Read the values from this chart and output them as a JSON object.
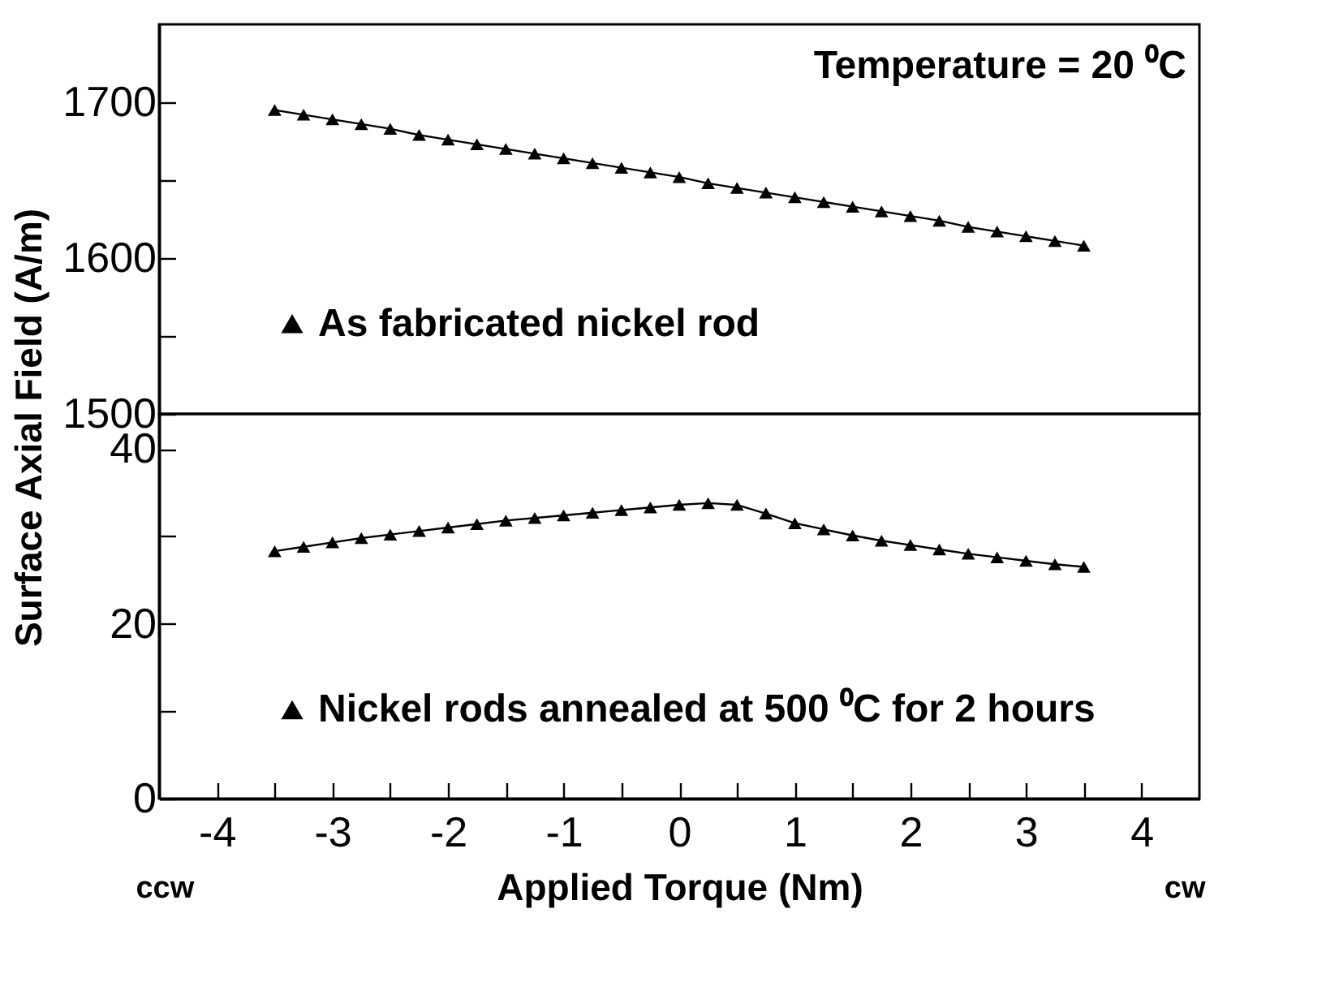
{
  "chart_data": [
    {
      "type": "line",
      "ylabel": "Surface Axial Field (A/m)",
      "annotations": [
        "Temperature = 20 ⁰C"
      ],
      "x": [
        -3.5,
        -3.25,
        -3,
        -2.75,
        -2.5,
        -2.25,
        -2,
        -1.75,
        -1.5,
        -1.25,
        -1,
        -0.75,
        -0.5,
        -0.25,
        0,
        0.25,
        0.5,
        0.75,
        1,
        1.25,
        1.5,
        1.75,
        2,
        2.25,
        2.5,
        2.75,
        3,
        3.25,
        3.5
      ],
      "series": [
        {
          "name": "As fabricated nickel rod",
          "color": "#000000",
          "values": [
            1695,
            1692,
            1689,
            1686,
            1683,
            1679,
            1676,
            1673,
            1670,
            1667,
            1664,
            1661,
            1658,
            1655,
            1652,
            1648,
            1645,
            1642,
            1639,
            1636,
            1633,
            1630,
            1627,
            1624,
            1620,
            1617,
            1614,
            1611,
            1608
          ]
        }
      ],
      "xlim": [
        -4.5,
        4.5
      ],
      "ylim": [
        1500,
        1750
      ],
      "yticks": [
        1500,
        {
          "value": 1550,
          "label": null
        },
        1600,
        {
          "value": 1650,
          "label": null
        },
        1700
      ],
      "tick_labels": "y",
      "marker": "triangle",
      "legend": "left",
      "grid": false
    },
    {
      "type": "line",
      "xlabel": "Applied  Torque (Nm)",
      "annotations": [
        "ccw",
        "cw"
      ],
      "x": [
        -3.5,
        -3.25,
        -3,
        -2.75,
        -2.5,
        -2.25,
        -2,
        -1.75,
        -1.5,
        -1.25,
        -1,
        -0.75,
        -0.5,
        -0.25,
        0,
        0.25,
        0.5,
        0.75,
        1,
        1.25,
        1.5,
        1.75,
        2,
        2.25,
        2.5,
        2.75,
        3,
        3.25,
        3.5
      ],
      "series": [
        {
          "name": "Nickel rods annealed at 500 ⁰C for 2 hours",
          "color": "#000000",
          "values": [
            28.3,
            28.8,
            29.3,
            29.8,
            30.2,
            30.6,
            31,
            31.4,
            31.8,
            32.1,
            32.4,
            32.7,
            33,
            33.3,
            33.6,
            33.8,
            33.6,
            32.6,
            31.5,
            30.8,
            30.1,
            29.5,
            29,
            28.5,
            28,
            27.6,
            27.2,
            26.8,
            26.5
          ]
        }
      ],
      "xlim": [
        -4.5,
        4.5
      ],
      "ylim": [
        0,
        44
      ],
      "xticks": [
        -4,
        {
          "value": -3.5,
          "label": null
        },
        -3,
        {
          "value": -2.5,
          "label": null
        },
        -2,
        {
          "value": -1.5,
          "label": null
        },
        -1,
        {
          "value": -0.5,
          "label": null
        },
        0,
        {
          "value": 0.5,
          "label": null
        },
        1,
        {
          "value": 1.5,
          "label": null
        },
        2,
        {
          "value": 2.5,
          "label": null
        },
        3,
        {
          "value": 3.5,
          "label": null
        },
        4
      ],
      "yticks": [
        0,
        {
          "value": 10,
          "label": null
        },
        20,
        {
          "value": 30,
          "label": null
        },
        40
      ],
      "marker": "triangle",
      "legend": "left",
      "grid": false
    }
  ]
}
